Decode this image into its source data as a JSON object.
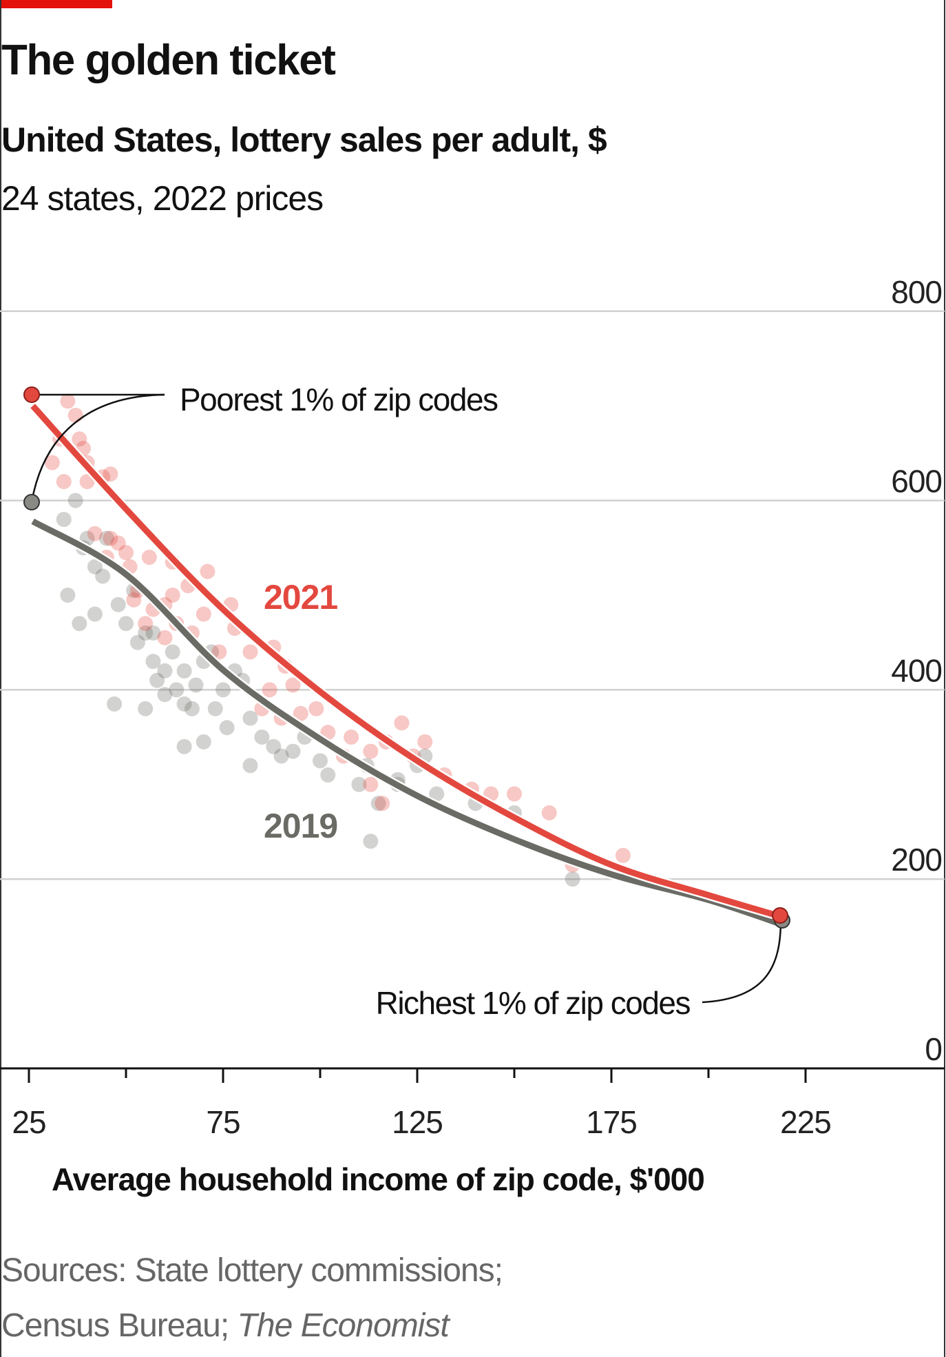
{
  "chart_data": {
    "type": "scatter",
    "title": "The golden ticket",
    "subtitle": "United States, lottery sales per adult, $",
    "description": "24 states, 2022 prices",
    "xlabel": "Average household income of zip code, $'000",
    "ylabel": "",
    "xlim": [
      25,
      245
    ],
    "ylim": [
      0,
      800
    ],
    "x_ticks": [
      "25",
      "75",
      "125",
      "175",
      "225"
    ],
    "x_tick_values": [
      25,
      75,
      125,
      175,
      225
    ],
    "x_minor_tick_values": [
      50,
      100,
      150,
      200
    ],
    "y_ticks": [
      "0",
      "200",
      "400",
      "600",
      "800"
    ],
    "y_tick_values": [
      0,
      200,
      400,
      600,
      800
    ],
    "grid": true,
    "source_line1": "Sources: State lottery commissions;",
    "source_line2_prefix": "Census Bureau; ",
    "source_line2_italic": "The Economist",
    "annotations": {
      "poorest": "Poorest 1% of zip codes",
      "richest": "Richest 1% of zip codes"
    },
    "colors": {
      "2021": "#e3483f",
      "2019": "#6b6b65",
      "accent_bar": "#e3120b"
    },
    "series": [
      {
        "name": "2021",
        "fit_curve": [
          [
            26,
            700
          ],
          [
            50,
            591
          ],
          [
            75,
            485
          ],
          [
            100,
            398
          ],
          [
            125,
            325
          ],
          [
            150,
            265
          ],
          [
            175,
            215
          ],
          [
            200,
            183
          ],
          [
            219,
            160
          ]
        ],
        "points": [
          [
            35,
            705
          ],
          [
            37,
            690
          ],
          [
            33,
            665
          ],
          [
            38,
            665
          ],
          [
            39,
            655
          ],
          [
            40,
            640
          ],
          [
            31,
            640
          ],
          [
            34,
            620
          ],
          [
            40,
            620
          ],
          [
            44,
            625
          ],
          [
            46,
            628
          ],
          [
            42,
            565
          ],
          [
            46,
            560
          ],
          [
            48,
            555
          ],
          [
            50,
            545
          ],
          [
            45,
            540
          ],
          [
            51,
            530
          ],
          [
            53,
            505
          ],
          [
            52,
            495
          ],
          [
            56,
            540
          ],
          [
            62,
            535
          ],
          [
            57,
            485
          ],
          [
            60,
            490
          ],
          [
            62,
            500
          ],
          [
            66,
            510
          ],
          [
            55,
            470
          ],
          [
            60,
            455
          ],
          [
            63,
            470
          ],
          [
            67,
            460
          ],
          [
            70,
            480
          ],
          [
            71,
            525
          ],
          [
            77,
            490
          ],
          [
            74,
            440
          ],
          [
            78,
            465
          ],
          [
            82,
            440
          ],
          [
            88,
            445
          ],
          [
            91,
            425
          ],
          [
            93,
            405
          ],
          [
            87,
            400
          ],
          [
            85,
            380
          ],
          [
            90,
            370
          ],
          [
            95,
            375
          ],
          [
            99,
            380
          ],
          [
            102,
            355
          ],
          [
            106,
            330
          ],
          [
            108,
            350
          ],
          [
            113,
            335
          ],
          [
            117,
            345
          ],
          [
            121,
            365
          ],
          [
            124,
            330
          ],
          [
            127,
            345
          ],
          [
            132,
            310
          ],
          [
            139,
            295
          ],
          [
            144,
            290
          ],
          [
            150,
            290
          ],
          [
            159,
            270
          ],
          [
            165,
            215
          ],
          [
            178,
            225
          ],
          [
            116,
            280
          ],
          [
            113,
            300
          ]
        ]
      },
      {
        "name": "2019",
        "fit_curve": [
          [
            26,
            578
          ],
          [
            50,
            522
          ],
          [
            75,
            421
          ],
          [
            100,
            348
          ],
          [
            125,
            288
          ],
          [
            150,
            242
          ],
          [
            175,
            205
          ],
          [
            200,
            178
          ],
          [
            219,
            152
          ]
        ],
        "points": [
          [
            34,
            580
          ],
          [
            37,
            600
          ],
          [
            40,
            560
          ],
          [
            39,
            550
          ],
          [
            45,
            560
          ],
          [
            42,
            530
          ],
          [
            44,
            520
          ],
          [
            35,
            500
          ],
          [
            42,
            480
          ],
          [
            38,
            470
          ],
          [
            48,
            490
          ],
          [
            50,
            470
          ],
          [
            53,
            450
          ],
          [
            55,
            460
          ],
          [
            57,
            430
          ],
          [
            60,
            420
          ],
          [
            62,
            440
          ],
          [
            65,
            420
          ],
          [
            68,
            405
          ],
          [
            70,
            430
          ],
          [
            72,
            440
          ],
          [
            58,
            410
          ],
          [
            60,
            395
          ],
          [
            63,
            400
          ],
          [
            65,
            385
          ],
          [
            67,
            380
          ],
          [
            75,
            400
          ],
          [
            78,
            420
          ],
          [
            80,
            410
          ],
          [
            73,
            380
          ],
          [
            76,
            360
          ],
          [
            82,
            370
          ],
          [
            85,
            350
          ],
          [
            88,
            340
          ],
          [
            90,
            330
          ],
          [
            93,
            335
          ],
          [
            96,
            350
          ],
          [
            100,
            325
          ],
          [
            102,
            310
          ],
          [
            110,
            300
          ],
          [
            112,
            320
          ],
          [
            115,
            280
          ],
          [
            113,
            240
          ],
          [
            120,
            305
          ],
          [
            125,
            320
          ],
          [
            127,
            330
          ],
          [
            120,
            300
          ],
          [
            130,
            290
          ],
          [
            140,
            280
          ],
          [
            150,
            270
          ],
          [
            165,
            200
          ],
          [
            47,
            385
          ],
          [
            55,
            380
          ],
          [
            65,
            340
          ],
          [
            70,
            345
          ],
          [
            82,
            320
          ],
          [
            57,
            460
          ],
          [
            52,
            505
          ]
        ]
      }
    ]
  }
}
